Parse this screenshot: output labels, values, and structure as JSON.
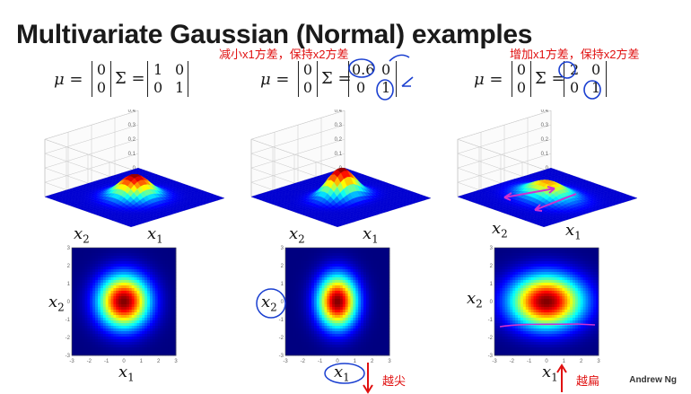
{
  "slide": {
    "title": "Multivariate Gaussian (Normal) examples",
    "footer": "Andrew Ng"
  },
  "panels": [
    {
      "mu_symbol": "μ =",
      "mu": [
        "0",
        "0"
      ],
      "sigma_symbol": "Σ =",
      "sigma": [
        [
          "1",
          "0"
        ],
        [
          "0",
          "1"
        ]
      ],
      "annotation_top": "",
      "annotation_bottom": "",
      "axis_x": "x",
      "axis_x_sub": "1",
      "axis_y": "x",
      "axis_y_sub": "2"
    },
    {
      "mu_symbol": "μ =",
      "mu": [
        "0",
        "0"
      ],
      "sigma_symbol": "Σ =",
      "sigma": [
        [
          "0.6",
          "0"
        ],
        [
          "0",
          "1"
        ]
      ],
      "annotation_top": "减小x1方差，保持x2方差",
      "annotation_bottom": "越尖",
      "axis_x": "x",
      "axis_x_sub": "1",
      "axis_y": "x",
      "axis_y_sub": "2"
    },
    {
      "mu_symbol": "μ =",
      "mu": [
        "0",
        "0"
      ],
      "sigma_symbol": "Σ =",
      "sigma": [
        [
          "2",
          "0"
        ],
        [
          "0",
          "1"
        ]
      ],
      "annotation_top": "增加x1方差，保持x2方差",
      "annotation_bottom": "越扁",
      "axis_x": "x",
      "axis_x_sub": "1",
      "axis_y": "x",
      "axis_y_sub": "2"
    }
  ],
  "surface_z_ticks": [
    "0.4",
    "0.3",
    "0.2",
    "0.1",
    "0"
  ],
  "heatmap_ticks": [
    "-3",
    "-2",
    "-1",
    "0",
    "1",
    "2",
    "3"
  ],
  "colors": {
    "annotation": "#e01010",
    "ink_circle": "#1a3fd0",
    "ink_highlight": "#d030d0"
  }
}
